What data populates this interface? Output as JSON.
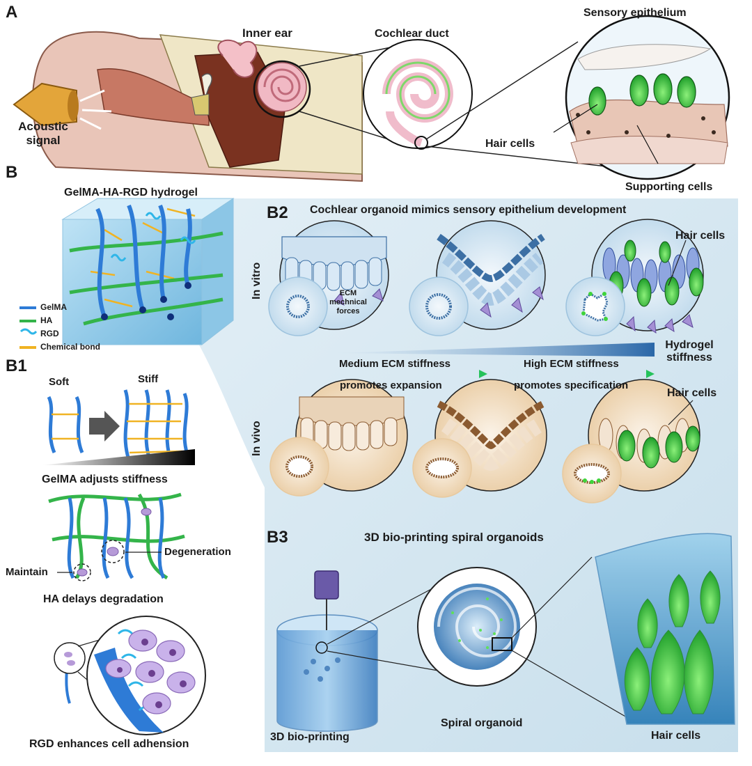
{
  "panels": {
    "a": "A",
    "b": "B",
    "b1": "B1",
    "b2": "B2",
    "b3": "B3"
  },
  "panel_a": {
    "acoustic_line1": "Acoustic",
    "acoustic_line2": "signal",
    "inner_ear": "Inner ear",
    "cochlear_duct": "Cochlear duct",
    "sensory_epithelium": "Sensory epithelium",
    "hair_cells": "Hair cells",
    "supporting_cells": "Supporting cells"
  },
  "hydrogel": {
    "title": "GelMA-HA-RGD hydrogel",
    "legend": [
      {
        "label": "GelMA",
        "color": "#2e7bd6"
      },
      {
        "label": "HA",
        "color": "#34b44a"
      },
      {
        "label": "RGD",
        "color": "#2fb6e8"
      },
      {
        "label": "Chemical bond",
        "color": "#f0b323"
      }
    ]
  },
  "b1": {
    "soft": "Soft",
    "stiff": "Stiff",
    "gelma_caption": "GelMA adjusts stiffness",
    "maintain": "Maintain",
    "degeneration": "Degeneration",
    "ha_caption": "HA delays degradation",
    "rgd_caption": "RGD enhances cell adhension"
  },
  "b2": {
    "title": "Cochlear organoid mimics sensory epithelium development",
    "in_vitro": "In vitro",
    "in_vivo": "In vivo",
    "ecm_line1": "ECM",
    "ecm_line2": "mechnical",
    "ecm_line3": "forces",
    "hair_cells_top": "Hair cells",
    "hair_cells_bottom": "Hair cells",
    "hydrogel_stiffness_line1": "Hydrogel",
    "hydrogel_stiffness_line2": "stiffness",
    "medium_stiffness": "Medium ECM stiffness",
    "promotes_expansion": "promotes expansion",
    "high_stiffness": "High ECM stiffness",
    "promotes_specification": "promotes specification"
  },
  "b3": {
    "title": "3D bio-printing spiral organoids",
    "bioprinting": "3D bio-printing",
    "spiral_organoid": "Spiral organoid",
    "hair_cells": "Hair cells"
  },
  "colors": {
    "gelma": "#2e7bd6",
    "ha": "#34b44a",
    "rgd": "#2fb6e8",
    "bond": "#f0b323",
    "hair_cell": "#3fd43b",
    "panel_bg": "#d6e8f2"
  }
}
